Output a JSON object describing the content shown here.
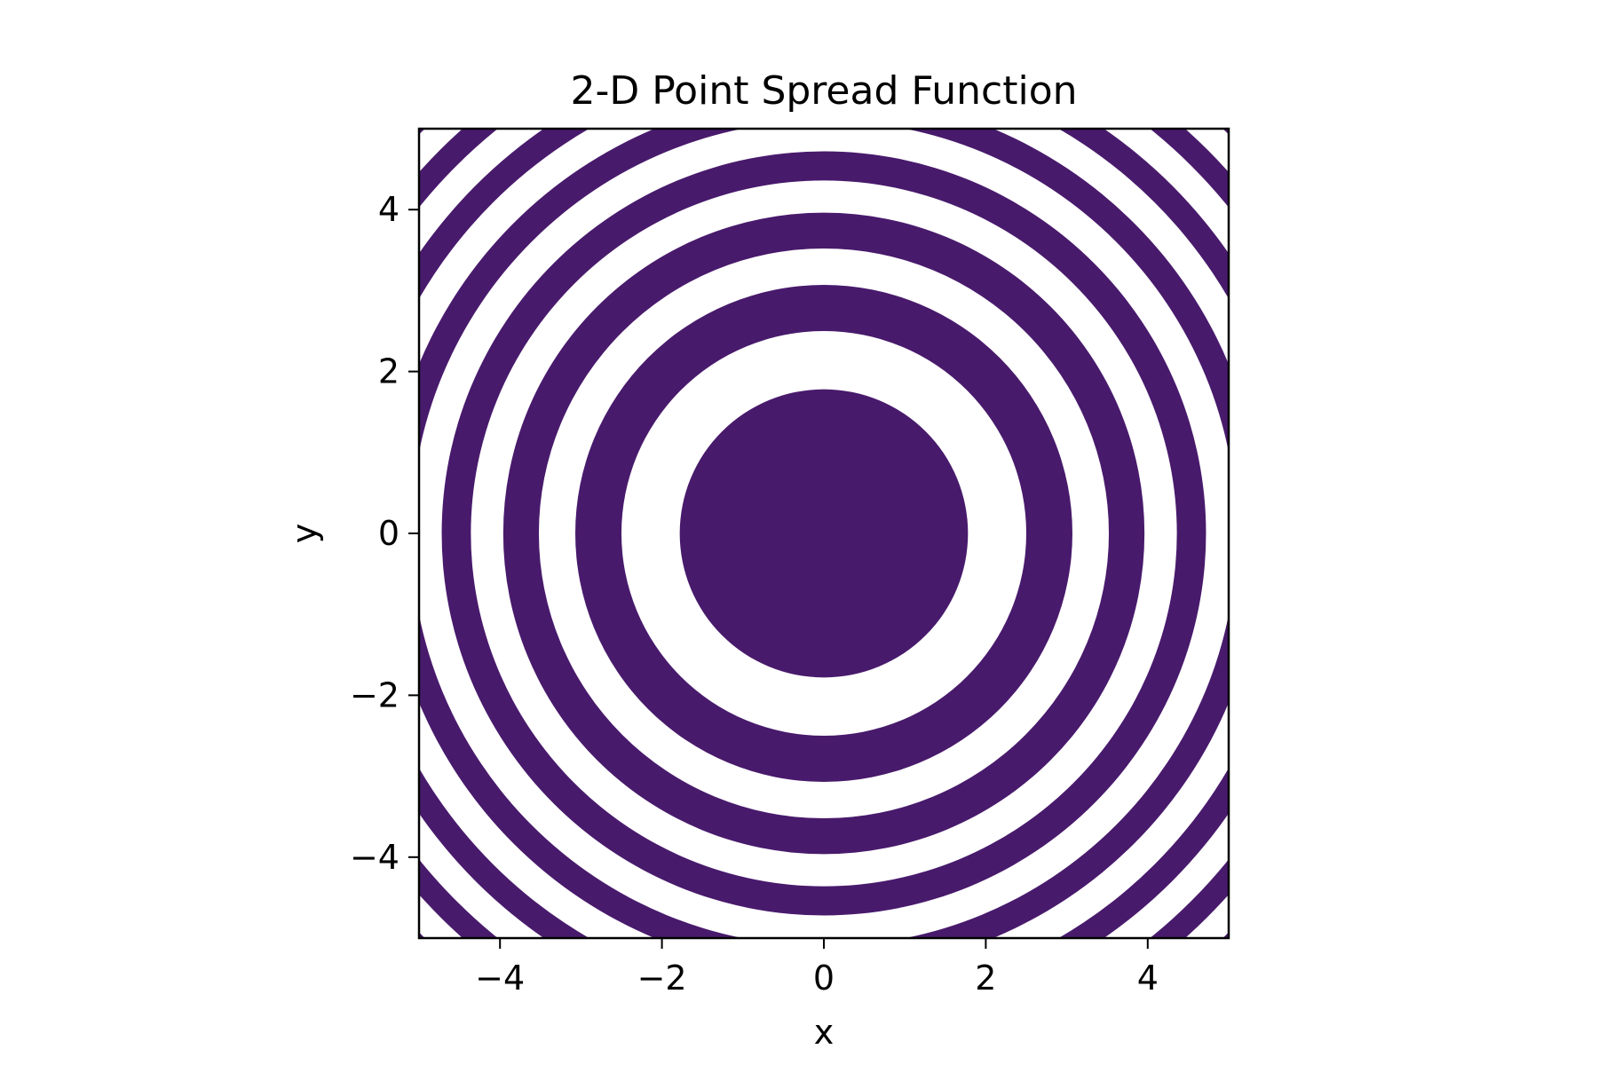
{
  "chart_data": {
    "type": "heatmap",
    "subtype": "filled-contour",
    "title": "2-D Point Spread Function",
    "xlabel": "x",
    "ylabel": "y",
    "xlim": [
      -5,
      5
    ],
    "ylim": [
      -5,
      5
    ],
    "xticks": [
      -4,
      -2,
      0,
      2,
      4
    ],
    "yticks": [
      -4,
      -2,
      0,
      2,
      4
    ],
    "xtick_labels": [
      "−4",
      "−2",
      "0",
      "2",
      "4"
    ],
    "ytick_labels": [
      "−4",
      "−2",
      "0",
      "2",
      "4"
    ],
    "grid": false,
    "legend": "none",
    "fill_color": "#481a6c",
    "background_color": "#ffffff",
    "filled_bands": [
      {
        "r_inner": 0,
        "r_outer": 1.78
      },
      {
        "r_inner": 2.5,
        "r_outer": 3.07
      },
      {
        "r_inner": 3.52,
        "r_outer": 3.96
      },
      {
        "r_inner": 4.36,
        "r_outer": 4.72
      },
      {
        "r_inner": 5.1,
        "r_outer": 5.42
      },
      {
        "r_inner": 5.78,
        "r_outer": 6.08
      },
      {
        "r_inner": 6.42,
        "r_outer": 6.7
      },
      {
        "r_inner": 7.02,
        "r_outer": 7.08
      }
    ]
  }
}
